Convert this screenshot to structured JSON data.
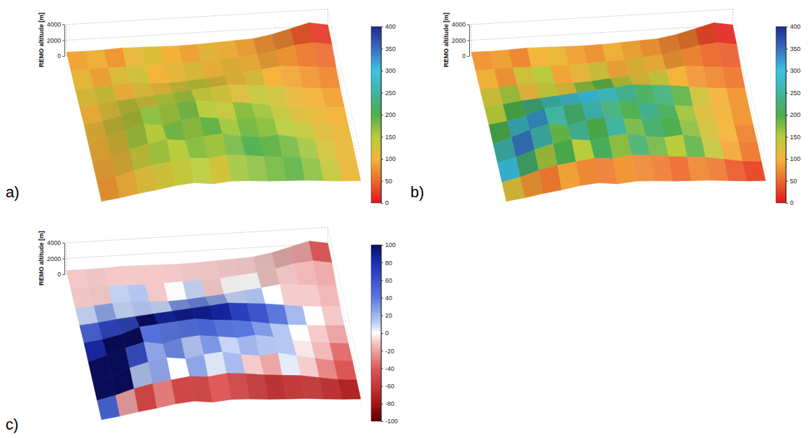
{
  "chart_data": {
    "type": "surface",
    "z_label": "REMO altitude [m]",
    "zlim": [
      0,
      4000
    ],
    "zticks": [
      0,
      2000,
      4000
    ],
    "grid": true,
    "altitude": [
      [
        500,
        450,
        500,
        600,
        550,
        500,
        450,
        500,
        600,
        700,
        800,
        1200,
        1800,
        2400,
        2000
      ],
      [
        450,
        500,
        600,
        500,
        450,
        500,
        550,
        600,
        700,
        900,
        1100,
        1500,
        2000,
        2200,
        1800
      ],
      [
        400,
        500,
        700,
        800,
        600,
        500,
        600,
        800,
        1000,
        1300,
        1500,
        1800,
        1600,
        1400,
        1200
      ],
      [
        500,
        700,
        1000,
        1200,
        1400,
        1600,
        1800,
        2000,
        2200,
        2000,
        1800,
        1500,
        1200,
        1000,
        900
      ],
      [
        600,
        900,
        1400,
        2200,
        2400,
        2600,
        2800,
        2500,
        2300,
        2000,
        1600,
        1300,
        1100,
        900,
        800
      ],
      [
        500,
        1200,
        2000,
        2600,
        2200,
        2800,
        3000,
        2700,
        2400,
        2600,
        2200,
        1700,
        1300,
        1000,
        800
      ],
      [
        400,
        1000,
        1800,
        2400,
        2800,
        2500,
        2900,
        3100,
        2600,
        2300,
        2500,
        2000,
        1500,
        1100,
        900
      ],
      [
        300,
        800,
        1500,
        2000,
        2300,
        2600,
        2400,
        2700,
        2500,
        2200,
        2000,
        1800,
        1400,
        1000,
        800
      ],
      [
        200,
        500,
        900,
        1200,
        1600,
        1800,
        1500,
        1700,
        1600,
        1400,
        1300,
        1200,
        1000,
        800,
        700
      ]
    ],
    "panels": [
      {
        "label": "a)",
        "clim": [
          0,
          400
        ],
        "cticks": [
          0,
          50,
          100,
          150,
          200,
          250,
          300,
          350,
          400
        ],
        "values": [
          [
            90,
            100,
            80,
            110,
            120,
            100,
            90,
            110,
            100,
            90,
            80,
            70,
            40,
            20
          ],
          [
            110,
            90,
            120,
            130,
            100,
            110,
            120,
            100,
            110,
            100,
            90,
            80,
            60,
            50
          ],
          [
            120,
            130,
            100,
            120,
            110,
            130,
            140,
            120,
            110,
            120,
            100,
            90,
            80,
            70
          ],
          [
            100,
            120,
            140,
            130,
            150,
            160,
            140,
            130,
            120,
            140,
            130,
            110,
            100,
            90
          ],
          [
            110,
            130,
            150,
            170,
            160,
            180,
            150,
            140,
            170,
            160,
            140,
            120,
            110,
            100
          ],
          [
            100,
            120,
            160,
            150,
            180,
            170,
            190,
            160,
            180,
            170,
            150,
            140,
            120,
            110
          ],
          [
            90,
            110,
            140,
            160,
            150,
            170,
            160,
            180,
            200,
            190,
            180,
            160,
            130,
            110
          ],
          [
            80,
            100,
            120,
            130,
            140,
            150,
            130,
            160,
            170,
            180,
            190,
            170,
            140,
            110
          ]
        ]
      },
      {
        "label": "b)",
        "clim": [
          0,
          400
        ],
        "cticks": [
          0,
          50,
          100,
          150,
          200,
          250,
          300,
          350,
          400
        ],
        "values": [
          [
            80,
            90,
            70,
            100,
            110,
            90,
            80,
            100,
            90,
            80,
            70,
            60,
            30,
            10
          ],
          [
            100,
            80,
            130,
            150,
            90,
            110,
            130,
            90,
            110,
            100,
            80,
            70,
            50,
            40
          ],
          [
            130,
            160,
            110,
            140,
            120,
            170,
            190,
            150,
            120,
            140,
            100,
            80,
            70,
            60
          ],
          [
            150,
            200,
            230,
            260,
            280,
            300,
            270,
            240,
            210,
            230,
            190,
            130,
            100,
            80
          ],
          [
            200,
            280,
            320,
            250,
            220,
            260,
            230,
            200,
            240,
            210,
            160,
            120,
            100,
            80
          ],
          [
            260,
            340,
            260,
            190,
            240,
            200,
            250,
            180,
            220,
            200,
            170,
            130,
            100,
            70
          ],
          [
            300,
            220,
            160,
            200,
            150,
            210,
            170,
            220,
            180,
            150,
            190,
            140,
            90,
            60
          ],
          [
            120,
            80,
            60,
            90,
            70,
            60,
            80,
            70,
            60,
            50,
            70,
            60,
            40,
            30
          ]
        ]
      },
      {
        "label": "c)",
        "clim": [
          -100,
          100
        ],
        "cticks": [
          -100,
          -80,
          -60,
          -40,
          -20,
          0,
          20,
          40,
          60,
          80,
          100
        ],
        "values": [
          [
            -10,
            -10,
            -10,
            -10,
            -10,
            -10,
            -10,
            -10,
            -10,
            -10,
            -10,
            -15,
            -20,
            -50
          ],
          [
            -10,
            -10,
            10,
            15,
            -10,
            0,
            10,
            -10,
            0,
            0,
            -10,
            -10,
            -15,
            -20
          ],
          [
            10,
            25,
            10,
            15,
            10,
            30,
            35,
            25,
            10,
            15,
            0,
            -10,
            -10,
            -15
          ],
          [
            50,
            65,
            65,
            100,
            85,
            90,
            90,
            85,
            75,
            65,
            45,
            20,
            0,
            -10
          ],
          [
            80,
            100,
            100,
            45,
            40,
            45,
            55,
            45,
            40,
            30,
            15,
            0,
            -10,
            -20
          ],
          [
            100,
            100,
            60,
            25,
            35,
            15,
            30,
            10,
            20,
            15,
            15,
            -5,
            -15,
            -35
          ],
          [
            100,
            100,
            15,
            25,
            0,
            25,
            5,
            20,
            -10,
            -20,
            5,
            -10,
            -30,
            -45
          ],
          [
            50,
            -20,
            -50,
            -30,
            -50,
            -60,
            -40,
            -55,
            -65,
            -70,
            -65,
            -65,
            -70,
            -75
          ]
        ]
      }
    ]
  }
}
